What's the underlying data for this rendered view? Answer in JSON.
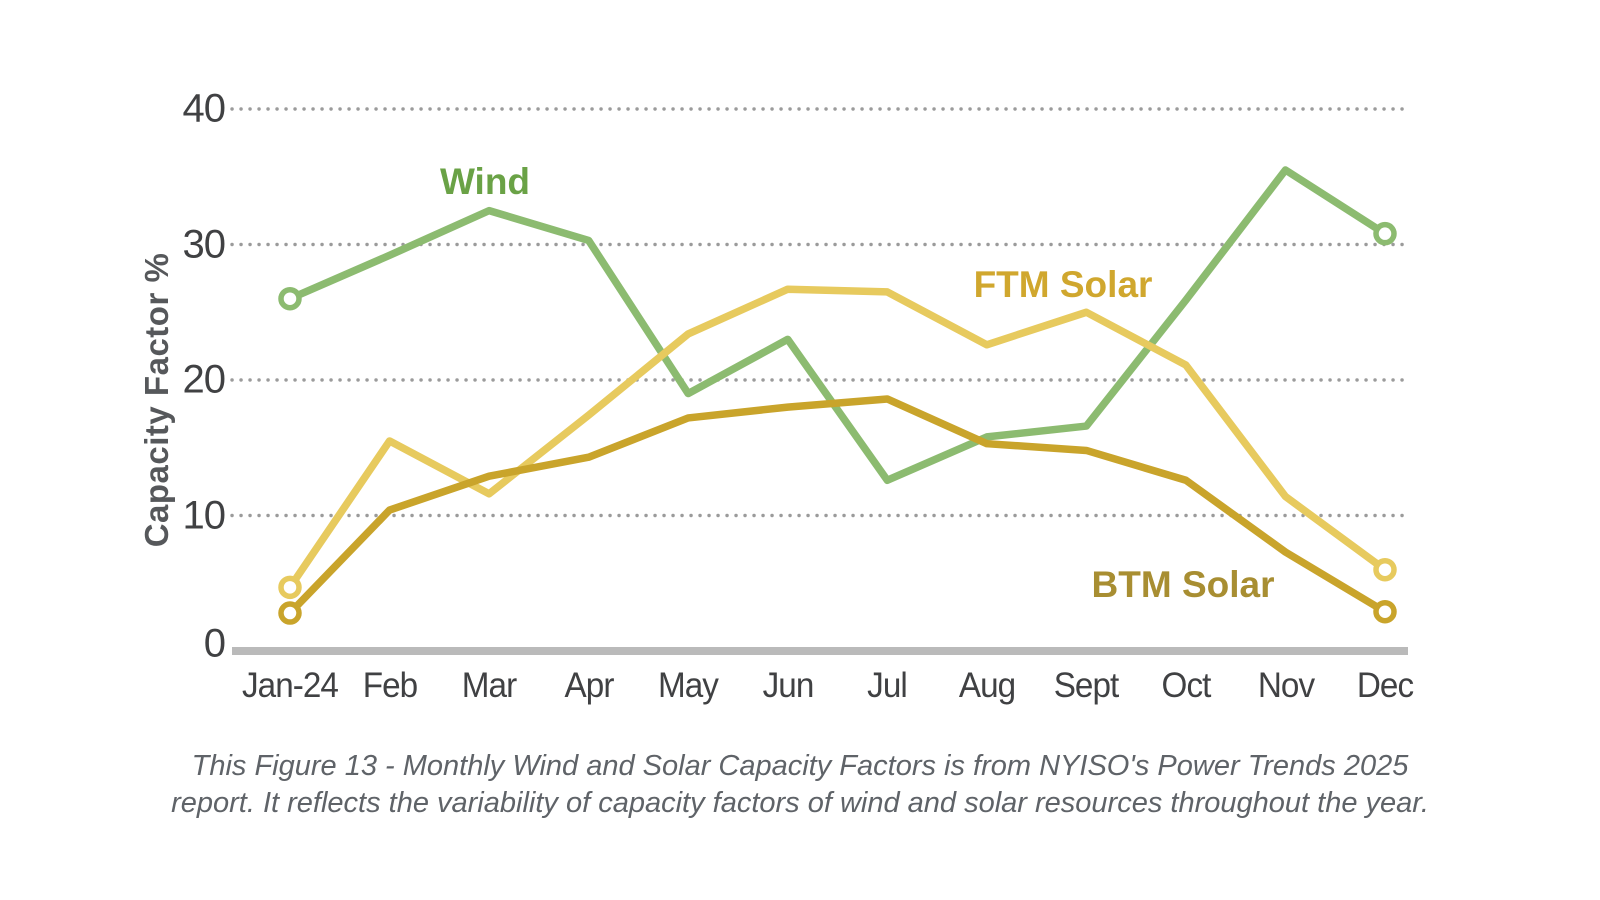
{
  "figure": {
    "y_axis_title": "Capacity Factor %",
    "caption_line1": "This Figure 13 - Monthly Wind and Solar Capacity Factors is from NYISO's Power Trends 2025",
    "caption_line2": "report. It reflects the variability of capacity factors of wind and solar resources throughout the year."
  },
  "chart_data": {
    "type": "line",
    "ylabel": "Capacity Factor %",
    "ylim": [
      0,
      40
    ],
    "yticks": [
      40,
      30,
      20,
      10,
      0
    ],
    "ytick_labels": [
      "40",
      "30",
      "20",
      "10",
      "0"
    ],
    "grid": "horizontal dotted gridlines at 10, 20, 30, 40; solid gray baseline at 0",
    "legend_position": "inline colored labels next to each line",
    "endpoint_markers": "open circles on first (Jan-24) and last (Dec) points of each series",
    "categories": [
      "Jan-24",
      "Feb",
      "Mar",
      "Apr",
      "May",
      "Jun",
      "Jul",
      "Aug",
      "Sept",
      "Oct",
      "Nov",
      "Dec"
    ],
    "series": [
      {
        "name": "Wind",
        "color": "#8cbb70",
        "label_color": "#6aa246",
        "values": [
          26.0,
          29.2,
          32.5,
          30.3,
          19.0,
          23.0,
          12.6,
          15.8,
          16.6,
          25.9,
          35.5,
          30.8
        ]
      },
      {
        "name": "FTM Solar",
        "color": "#e7ca5e",
        "label_color": "#d0a72e",
        "values": [
          4.7,
          15.5,
          11.6,
          17.4,
          23.4,
          26.7,
          26.5,
          22.6,
          25.0,
          21.1,
          11.4,
          6.0
        ]
      },
      {
        "name": "BTM Solar",
        "color": "#c9a42b",
        "label_color": "#a88e32",
        "values": [
          2.8,
          10.4,
          12.9,
          14.3,
          17.2,
          18.0,
          18.6,
          15.3,
          14.8,
          12.6,
          7.3,
          2.9
        ]
      }
    ]
  },
  "colors": {
    "axis_text": "#404143",
    "gridline": "#9b9b9b",
    "baseline": "#bababa",
    "caption_text": "#5f6368",
    "background": "#ffffff"
  }
}
